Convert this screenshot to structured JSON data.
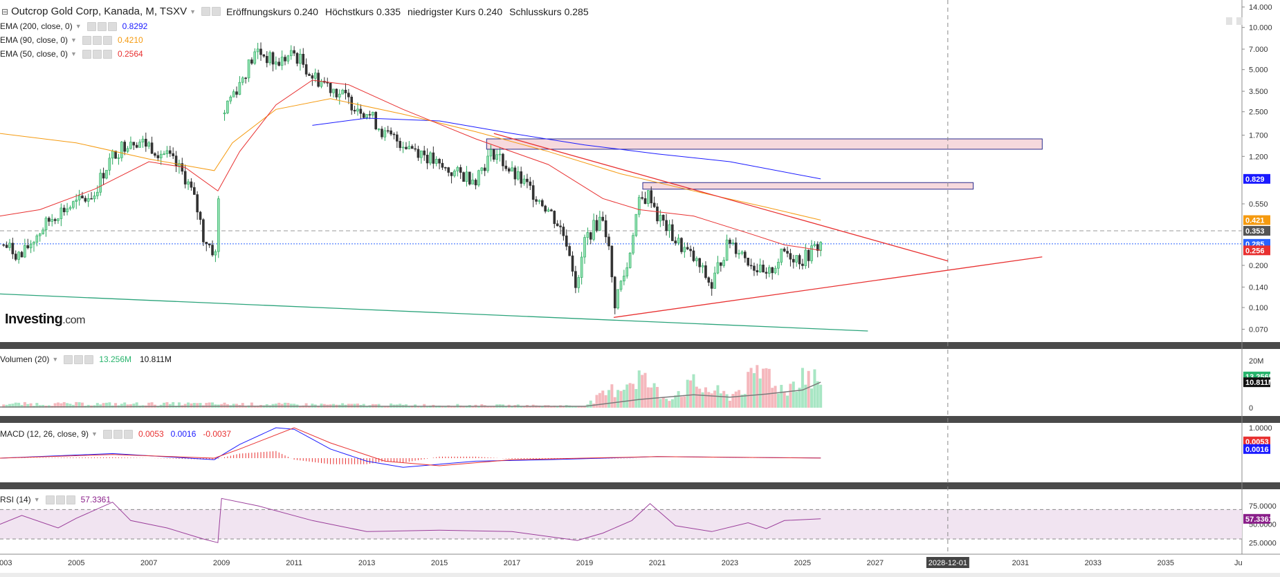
{
  "header": {
    "symbol": "Outcrop Gold Corp, Kanada, M, TSXV",
    "open_label": "Eröffnungskurs",
    "open_value": "0.240",
    "high_label": "Höchstkurs",
    "high_value": "0.335",
    "low_label": "niedrigster Kurs",
    "low_value": "0.240",
    "close_label": "Schlusskurs",
    "close_value": "0.285"
  },
  "indicators": {
    "ema200": {
      "label": "EMA (200, close, 0)",
      "value": "0.8292",
      "color": "#1a1aff"
    },
    "ema90": {
      "label": "EMA (90, close, 0)",
      "value": "0.4210",
      "color": "#f59a0f"
    },
    "ema50": {
      "label": "EMA (50, close, 0)",
      "value": "0.2564",
      "color": "#e83030"
    }
  },
  "volume": {
    "label": "Volumen (20)",
    "value1": "13.256M",
    "value2": "10.811M"
  },
  "macd": {
    "label": "MACD (12, 26, close, 9)",
    "v1": "0.0053",
    "v2": "0.0016",
    "v3": "-0.0037"
  },
  "rsi": {
    "label": "RSI (14)",
    "value": "57.3361"
  },
  "logo": {
    "brand": "Investing",
    "suffix": ".com"
  },
  "chart_data": {
    "type": "candlestick",
    "title": "Outcrop Gold Corp, Kanada, M, TSXV",
    "price_axis": {
      "scale": "log",
      "ticks": [
        "14.000",
        "10.000",
        "7.000",
        "5.000",
        "3.500",
        "2.500",
        "1.700",
        "1.200",
        "0.550",
        "0.200",
        "0.140",
        "0.100",
        "0.070"
      ],
      "tick_values": [
        14,
        10,
        7,
        5,
        3.5,
        2.5,
        1.7,
        1.2,
        0.55,
        0.2,
        0.14,
        0.1,
        0.07
      ],
      "ylim": [
        0.06,
        15
      ]
    },
    "price_badges": [
      {
        "text": "0.829",
        "value": 0.829,
        "color": "#1a1aff"
      },
      {
        "text": "0.421",
        "value": 0.421,
        "color": "#f59a0f"
      },
      {
        "text": "0.353",
        "value": 0.353,
        "color": "#555555"
      },
      {
        "text": "0.285",
        "value": 0.285,
        "color": "#2962ff"
      },
      {
        "text": "0.256",
        "value": 0.256,
        "color": "#e83030"
      }
    ],
    "x_axis": {
      "ticks": [
        "2003",
        "2005",
        "2007",
        "2009",
        "2011",
        "2013",
        "2015",
        "2017",
        "2019",
        "2021",
        "2023",
        "2025",
        "2027",
        "2028-12-01",
        "2031",
        "2033",
        "2035",
        "Ju"
      ],
      "tick_years": [
        2003,
        2005,
        2007,
        2009,
        2011,
        2013,
        2015,
        2017,
        2019,
        2021,
        2023,
        2025,
        2027,
        2029,
        2031,
        2033,
        2035,
        2037
      ],
      "cursor_label": "2028-12-01",
      "xlim": [
        2002.9,
        2037.1
      ]
    },
    "closes": [
      {
        "year": 2003.0,
        "price": 0.28
      },
      {
        "year": 2003.5,
        "price": 0.23
      },
      {
        "year": 2004.0,
        "price": 0.35
      },
      {
        "year": 2004.5,
        "price": 0.48
      },
      {
        "year": 2005.0,
        "price": 0.55
      },
      {
        "year": 2005.5,
        "price": 0.65
      },
      {
        "year": 2006.0,
        "price": 1.2
      },
      {
        "year": 2006.5,
        "price": 1.6
      },
      {
        "year": 2007.0,
        "price": 1.45
      },
      {
        "year": 2007.5,
        "price": 1.2
      },
      {
        "year": 2008.0,
        "price": 0.85
      },
      {
        "year": 2008.5,
        "price": 0.32
      },
      {
        "year": 2008.9,
        "price": 0.22
      },
      {
        "year": 2009.0,
        "price": 2.4
      },
      {
        "year": 2009.5,
        "price": 4.0
      },
      {
        "year": 2010.0,
        "price": 6.8
      },
      {
        "year": 2010.5,
        "price": 5.5
      },
      {
        "year": 2011.0,
        "price": 6.5
      },
      {
        "year": 2011.5,
        "price": 4.5
      },
      {
        "year": 2012.0,
        "price": 3.8
      },
      {
        "year": 2012.5,
        "price": 3.0
      },
      {
        "year": 2013.0,
        "price": 2.5
      },
      {
        "year": 2013.5,
        "price": 1.7
      },
      {
        "year": 2014.0,
        "price": 1.5
      },
      {
        "year": 2014.5,
        "price": 1.3
      },
      {
        "year": 2015.0,
        "price": 1.0
      },
      {
        "year": 2015.5,
        "price": 0.9
      },
      {
        "year": 2016.0,
        "price": 0.85
      },
      {
        "year": 2016.5,
        "price": 1.3
      },
      {
        "year": 2017.0,
        "price": 0.9
      },
      {
        "year": 2017.5,
        "price": 0.7
      },
      {
        "year": 2018.0,
        "price": 0.5
      },
      {
        "year": 2018.5,
        "price": 0.3
      },
      {
        "year": 2018.8,
        "price": 0.12
      },
      {
        "year": 2019.0,
        "price": 0.3
      },
      {
        "year": 2019.5,
        "price": 0.45
      },
      {
        "year": 2019.8,
        "price": 0.1
      },
      {
        "year": 2020.2,
        "price": 0.2
      },
      {
        "year": 2020.5,
        "price": 0.55
      },
      {
        "year": 2020.8,
        "price": 0.65
      },
      {
        "year": 2021.0,
        "price": 0.45
      },
      {
        "year": 2021.5,
        "price": 0.3
      },
      {
        "year": 2022.0,
        "price": 0.22
      },
      {
        "year": 2022.5,
        "price": 0.14
      },
      {
        "year": 2023.0,
        "price": 0.3
      },
      {
        "year": 2023.5,
        "price": 0.22
      },
      {
        "year": 2024.0,
        "price": 0.16
      },
      {
        "year": 2024.5,
        "price": 0.25
      },
      {
        "year": 2025.0,
        "price": 0.22
      },
      {
        "year": 2025.5,
        "price": 0.285
      }
    ],
    "ema": [
      {
        "name": "EMA (200, close, 0)",
        "color": "#1a1aff",
        "points": [
          [
            2011.5,
            2.0
          ],
          [
            2013.0,
            2.25
          ],
          [
            2015.0,
            2.15
          ],
          [
            2017.0,
            1.75
          ],
          [
            2019.0,
            1.45
          ],
          [
            2021.0,
            1.25
          ],
          [
            2023.0,
            1.1
          ],
          [
            2025.5,
            0.829
          ]
        ]
      },
      {
        "name": "EMA (90, close, 0)",
        "color": "#f59a0f",
        "points": [
          [
            2002.9,
            1.75
          ],
          [
            2005.0,
            1.5
          ],
          [
            2007.0,
            1.15
          ],
          [
            2008.8,
            0.95
          ],
          [
            2009.3,
            1.5
          ],
          [
            2010.5,
            2.6
          ],
          [
            2012.0,
            3.1
          ],
          [
            2014.0,
            2.4
          ],
          [
            2016.0,
            1.8
          ],
          [
            2018.0,
            1.3
          ],
          [
            2020.0,
            0.9
          ],
          [
            2022.0,
            0.68
          ],
          [
            2024.0,
            0.52
          ],
          [
            2025.5,
            0.421
          ]
        ]
      },
      {
        "name": "EMA (50, close, 0)",
        "color": "#e83030",
        "points": [
          [
            2002.9,
            0.45
          ],
          [
            2004.0,
            0.5
          ],
          [
            2005.5,
            0.7
          ],
          [
            2007.0,
            1.1
          ],
          [
            2008.0,
            1.0
          ],
          [
            2008.9,
            0.68
          ],
          [
            2009.5,
            1.3
          ],
          [
            2010.5,
            2.8
          ],
          [
            2011.5,
            4.2
          ],
          [
            2012.5,
            3.9
          ],
          [
            2014.0,
            2.6
          ],
          [
            2016.0,
            1.6
          ],
          [
            2018.0,
            1.05
          ],
          [
            2019.5,
            0.6
          ],
          [
            2020.5,
            0.5
          ],
          [
            2022.0,
            0.45
          ],
          [
            2023.5,
            0.34
          ],
          [
            2024.5,
            0.28
          ],
          [
            2025.5,
            0.256
          ]
        ]
      }
    ],
    "trendlines": [
      {
        "color": "#e83030",
        "from": [
          2016.5,
          1.75
        ],
        "to": [
          2029.0,
          0.215
        ]
      },
      {
        "color": "#e83030",
        "from": [
          2019.8,
          0.085
        ],
        "to": [
          2031.6,
          0.23
        ]
      },
      {
        "color": "#2aa37a",
        "from": [
          2002.9,
          0.125
        ],
        "to": [
          2026.8,
          0.068
        ]
      }
    ],
    "zones": [
      {
        "from_year": 2016.3,
        "to_year": 2031.6,
        "low": 1.35,
        "high": 1.6
      },
      {
        "from_year": 2020.6,
        "to_year": 2029.7,
        "low": 0.7,
        "high": 0.78
      }
    ],
    "volume": {
      "axis_ticks": [
        "20M",
        "0"
      ],
      "ylim": [
        0,
        22
      ],
      "values_m": [
        {
          "year": 2005.5,
          "v": 2
        },
        {
          "year": 2008.2,
          "v": 2
        },
        {
          "year": 2019.0,
          "v": 1
        },
        {
          "year": 2020.5,
          "v": 17
        },
        {
          "year": 2021.2,
          "v": 5
        },
        {
          "year": 2022.0,
          "v": 12
        },
        {
          "year": 2023.0,
          "v": 6
        },
        {
          "year": 2024.0,
          "v": 20
        },
        {
          "year": 2024.5,
          "v": 8
        },
        {
          "year": 2025.0,
          "v": 19
        },
        {
          "year": 2025.5,
          "v": 13.256
        }
      ],
      "ma_m": [
        [
          2002.9,
          0.3
        ],
        [
          2009.0,
          0.6
        ],
        [
          2019.0,
          0.6
        ],
        [
          2020.5,
          3.5
        ],
        [
          2022.0,
          5.5
        ],
        [
          2023.0,
          4.5
        ],
        [
          2024.0,
          5.8
        ],
        [
          2025.0,
          7.5
        ],
        [
          2025.5,
          10.811
        ]
      ]
    },
    "macd": {
      "axis_ticks": [
        "1.0000"
      ],
      "line": [
        [
          2002.9,
          0.0
        ],
        [
          2006.0,
          0.15
        ],
        [
          2008.8,
          -0.05
        ],
        [
          2009.5,
          0.45
        ],
        [
          2010.5,
          1.0
        ],
        [
          2011.0,
          0.95
        ],
        [
          2012.0,
          0.3
        ],
        [
          2013.0,
          -0.1
        ],
        [
          2014.0,
          -0.3
        ],
        [
          2016.0,
          -0.1
        ],
        [
          2018.0,
          -0.05
        ],
        [
          2021.0,
          0.05
        ],
        [
          2025.5,
          0.0053
        ]
      ],
      "signal": [
        [
          2002.9,
          0.0
        ],
        [
          2006.0,
          0.12
        ],
        [
          2008.8,
          0.0
        ],
        [
          2009.5,
          0.3
        ],
        [
          2011.0,
          1.0
        ],
        [
          2012.0,
          0.5
        ],
        [
          2013.5,
          -0.1
        ],
        [
          2015.0,
          -0.25
        ],
        [
          2017.0,
          -0.05
        ],
        [
          2021.0,
          0.05
        ],
        [
          2025.5,
          0.0016
        ]
      ]
    },
    "rsi": {
      "axis_ticks": [
        "75.0000",
        "50.0000",
        "25.0000"
      ],
      "band": [
        30,
        70
      ],
      "ylim": [
        15,
        90
      ],
      "line": [
        [
          2002.9,
          50
        ],
        [
          2003.5,
          62
        ],
        [
          2004.5,
          45
        ],
        [
          2005.0,
          58
        ],
        [
          2006.0,
          80
        ],
        [
          2006.5,
          55
        ],
        [
          2007.5,
          45
        ],
        [
          2008.5,
          30
        ],
        [
          2008.9,
          25
        ],
        [
          2009.0,
          85
        ],
        [
          2010.0,
          75
        ],
        [
          2011.5,
          55
        ],
        [
          2013.0,
          40
        ],
        [
          2015.0,
          42
        ],
        [
          2017.0,
          40
        ],
        [
          2018.8,
          28
        ],
        [
          2019.5,
          38
        ],
        [
          2020.3,
          55
        ],
        [
          2020.8,
          78
        ],
        [
          2021.5,
          48
        ],
        [
          2022.5,
          40
        ],
        [
          2023.5,
          52
        ],
        [
          2024.0,
          44
        ],
        [
          2024.5,
          55
        ],
        [
          2025.5,
          57.3361
        ]
      ]
    }
  }
}
